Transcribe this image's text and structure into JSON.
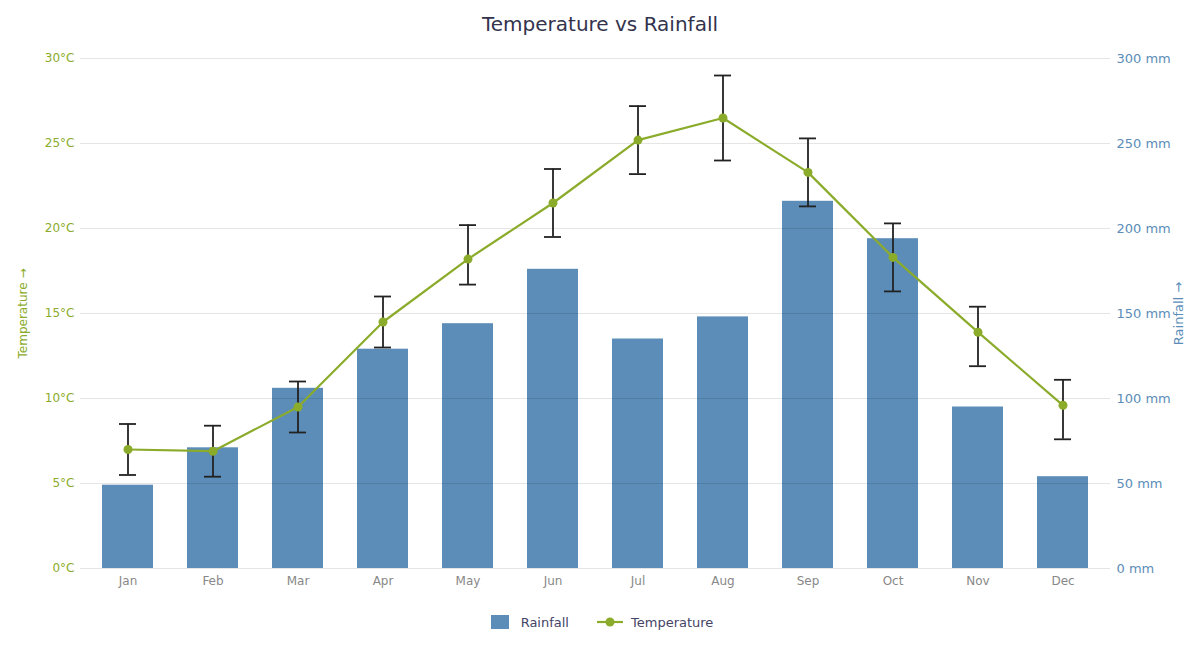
{
  "chart_data": {
    "type": "bar",
    "title": "Temperature vs Rainfall",
    "categories": [
      "Jan",
      "Feb",
      "Mar",
      "Apr",
      "May",
      "Jun",
      "Jul",
      "Aug",
      "Sep",
      "Oct",
      "Nov",
      "Dec"
    ],
    "series": [
      {
        "name": "Rainfall",
        "type": "bar",
        "axis": "y2",
        "color": "#5b8db8",
        "values": [
          49,
          71,
          106,
          129,
          144,
          176,
          135,
          148,
          216,
          194,
          95,
          54
        ]
      },
      {
        "name": "Temperature",
        "type": "line",
        "color": "#8bab2b",
        "marker": "circle",
        "values": [
          7.0,
          6.9,
          9.5,
          14.5,
          18.2,
          21.5,
          25.2,
          26.5,
          23.3,
          18.3,
          13.9,
          9.6
        ],
        "error_low": [
          1.5,
          1.5,
          1.5,
          1.5,
          1.5,
          2.0,
          2.0,
          2.5,
          2.0,
          2.0,
          2.0,
          2.0
        ],
        "error_high": [
          1.5,
          1.5,
          1.5,
          1.5,
          2.0,
          2.0,
          2.0,
          2.5,
          2.0,
          2.0,
          1.5,
          1.5
        ]
      }
    ],
    "ylabel": "Temperature",
    "y2label": "Rainfall",
    "ylim": [
      0,
      30
    ],
    "yticks": [
      {
        "value": 0,
        "label": "0°C"
      },
      {
        "value": 5,
        "label": "5°C"
      },
      {
        "value": 10,
        "label": "10°C"
      },
      {
        "value": 15,
        "label": "15°C"
      },
      {
        "value": 20,
        "label": "20°C"
      },
      {
        "value": 25,
        "label": "25°C"
      },
      {
        "value": 30,
        "label": "30°C"
      }
    ],
    "y2lim": [
      0,
      300
    ],
    "y2ticks": [
      {
        "value": 0,
        "label": "0 mm"
      },
      {
        "value": 50,
        "label": "50 mm"
      },
      {
        "value": 100,
        "label": "100 mm"
      },
      {
        "value": 150,
        "label": "150 mm"
      },
      {
        "value": 200,
        "label": "200 mm"
      },
      {
        "value": 250,
        "label": "250 mm"
      },
      {
        "value": 300,
        "label": "300 mm"
      }
    ],
    "grid": true,
    "legend": "bottom"
  }
}
